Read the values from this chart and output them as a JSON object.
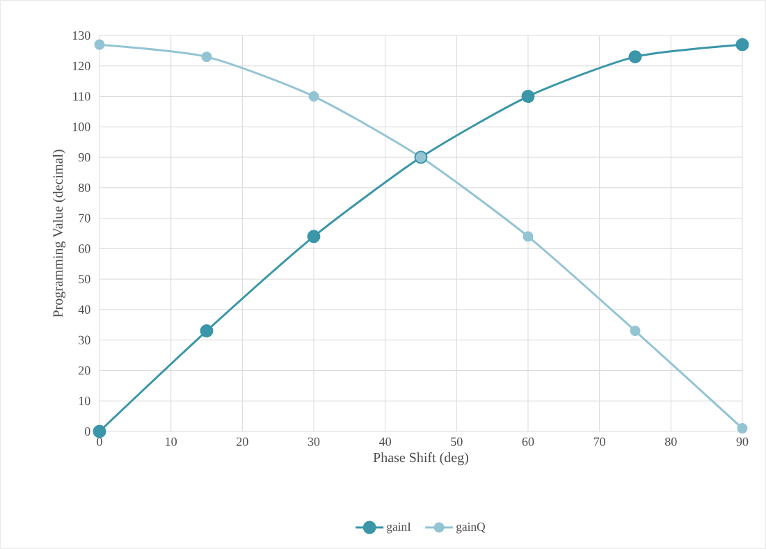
{
  "chart_data": {
    "type": "line",
    "xlabel": "Phase Shift (deg)",
    "ylabel": "Programming Value (decimal)",
    "x": [
      0,
      15,
      30,
      45,
      60,
      75,
      90
    ],
    "series": [
      {
        "name": "gainI",
        "color": "#3a96a8",
        "values": [
          0,
          33,
          64,
          90,
          110,
          123,
          127
        ]
      },
      {
        "name": "gainQ",
        "color": "#93c4d4",
        "values": [
          127,
          123,
          110,
          90,
          64,
          33,
          1
        ]
      }
    ],
    "xlim": [
      0,
      90
    ],
    "xticks": [
      0,
      10,
      20,
      30,
      40,
      50,
      60,
      70,
      80,
      90
    ],
    "ylim": [
      0,
      130
    ],
    "yticks": [
      0,
      10,
      20,
      30,
      40,
      50,
      60,
      70,
      80,
      90,
      100,
      110,
      120,
      130
    ],
    "grid": true,
    "legend": "bottom",
    "marker": "circle",
    "line_style": "solid"
  }
}
